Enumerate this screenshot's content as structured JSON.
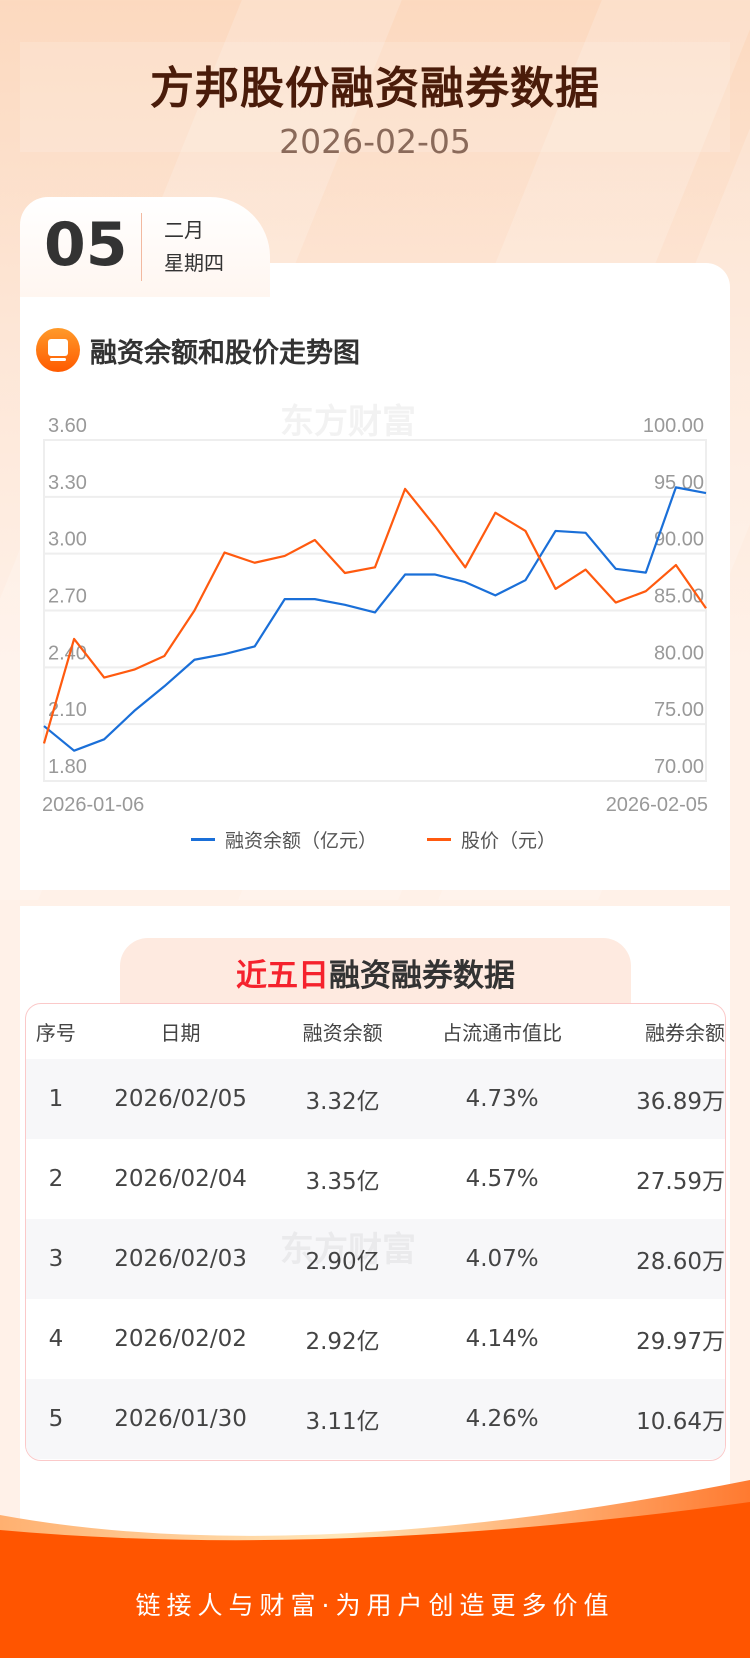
{
  "header": {
    "title": "方邦股份融资融券数据",
    "date": "2026-02-05"
  },
  "date_badge": {
    "day": "05",
    "month": "二月",
    "weekday": "星期四"
  },
  "chart_section": {
    "title": "融资余额和股价走势图",
    "watermark": "东方财富"
  },
  "chart_data": {
    "type": "line",
    "title": "融资余额和股价走势图",
    "x_start_label": "2026-01-06",
    "x_end_label": "2026-02-05",
    "y_left_ticks": [
      "3.60",
      "3.30",
      "3.00",
      "2.70",
      "2.40",
      "2.10",
      "1.80"
    ],
    "y_right_ticks": [
      "100.00",
      "95.00",
      "90.00",
      "85.00",
      "80.00",
      "75.00",
      "70.00"
    ],
    "y_left_range": [
      1.8,
      3.6
    ],
    "y_right_range": [
      70,
      100
    ],
    "grid": true,
    "legend_position": "bottom",
    "series": [
      {
        "name": "融资余额（亿元）",
        "axis": "left",
        "color": "#1a6fd8",
        "values": [
          2.09,
          1.96,
          2.02,
          2.17,
          2.3,
          2.44,
          2.47,
          2.51,
          2.76,
          2.76,
          2.73,
          2.69,
          2.89,
          2.89,
          2.85,
          2.78,
          2.86,
          3.12,
          3.11,
          2.92,
          2.9,
          3.35,
          3.32
        ]
      },
      {
        "name": "股价（元）",
        "axis": "right",
        "color": "#ff5a0f",
        "values": [
          73.3,
          82.5,
          79.1,
          79.8,
          81.0,
          85.0,
          90.1,
          89.2,
          89.8,
          91.2,
          88.3,
          88.8,
          95.7,
          92.4,
          88.8,
          93.6,
          92.0,
          86.9,
          88.6,
          85.7,
          86.7,
          89.0,
          85.2
        ]
      }
    ]
  },
  "table_section": {
    "title_highlight": "近五日",
    "title_rest": "融资融券数据",
    "watermark": "东方财富"
  },
  "table": {
    "headers": [
      "序号",
      "日期",
      "融资余额",
      "占流通市值比",
      "融券余额"
    ],
    "rows": [
      [
        "1",
        "2026/02/05",
        "3.32亿",
        "4.73%",
        "36.89万"
      ],
      [
        "2",
        "2026/02/04",
        "3.35亿",
        "4.57%",
        "27.59万"
      ],
      [
        "3",
        "2026/02/03",
        "2.90亿",
        "4.07%",
        "28.60万"
      ],
      [
        "4",
        "2026/02/02",
        "2.92亿",
        "4.14%",
        "29.97万"
      ],
      [
        "5",
        "2026/01/30",
        "3.11亿",
        "4.26%",
        "10.64万"
      ]
    ]
  },
  "footer": {
    "slogan": "链接人与财富·为用户创造更多价值"
  },
  "colors": {
    "accent": "#ff5500",
    "title": "#4a1c0a",
    "blue": "#1a6fd8",
    "orange": "#ff5a0f"
  }
}
